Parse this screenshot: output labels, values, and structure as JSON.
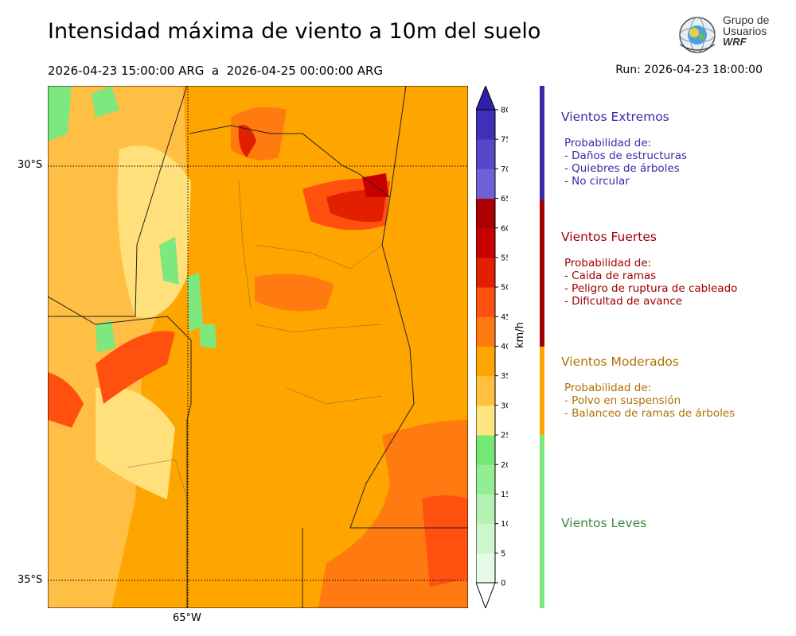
{
  "title": "Intensidad máxima de viento a 10m del suelo",
  "subtitle": "2026-04-23 15:00:00 ARG  a  2026-04-25 00:00:00 ARG",
  "run": "Run: 2026-04-23 18:00:00",
  "logo": {
    "line1": "Grupo de",
    "line2": "Usuarios",
    "line3": "WRF"
  },
  "axis": {
    "lat_labels": [
      "30°S",
      "35°S"
    ],
    "lon_labels": [
      "65°W"
    ]
  },
  "colorbar": {
    "unit": "km/h",
    "ticks": [
      "0",
      "5",
      "10",
      "15",
      "20",
      "25",
      "30",
      "35",
      "40",
      "45",
      "50",
      "55",
      "60",
      "65",
      "70",
      "75",
      "80"
    ],
    "colors": [
      "#e6fbe6",
      "#cdf7cd",
      "#b3f2b3",
      "#93ed93",
      "#74e874",
      "#ffe580",
      "#ffc040",
      "#ffa500",
      "#ff7a10",
      "#ff5010",
      "#e22000",
      "#c80000",
      "#aa0000",
      "#7060d8",
      "#5848c8",
      "#4030b8",
      "#3020a8"
    ]
  },
  "categories": [
    {
      "title": "Vientos Extremos",
      "color": "#3a2aa8",
      "bar_color": "#3a2aa8",
      "prob_label": "Probabilidad de:",
      "items": [
        "- Daños de estructuras",
        "- Quiebres de árboles",
        "- No circular"
      ]
    },
    {
      "title": "Vientos Fuertes",
      "color": "#a00000",
      "bar_color": "#a00000",
      "prob_label": "Probabilidad de:",
      "items": [
        "- Caida de ramas",
        "- Peligro de ruptura de cableado",
        "- Dificultad de avance"
      ]
    },
    {
      "title": "Vientos Moderados",
      "color": "#b07000",
      "bar_color": "#ffa500",
      "prob_label": "Probabilidad de:",
      "items": [
        "- Polvo en suspensión",
        "- Balanceo de ramas de árboles"
      ]
    },
    {
      "title": "Vientos Leves",
      "color": "#3a8a3a",
      "bar_color": "#7de87d",
      "prob_label": "",
      "items": []
    }
  ]
}
